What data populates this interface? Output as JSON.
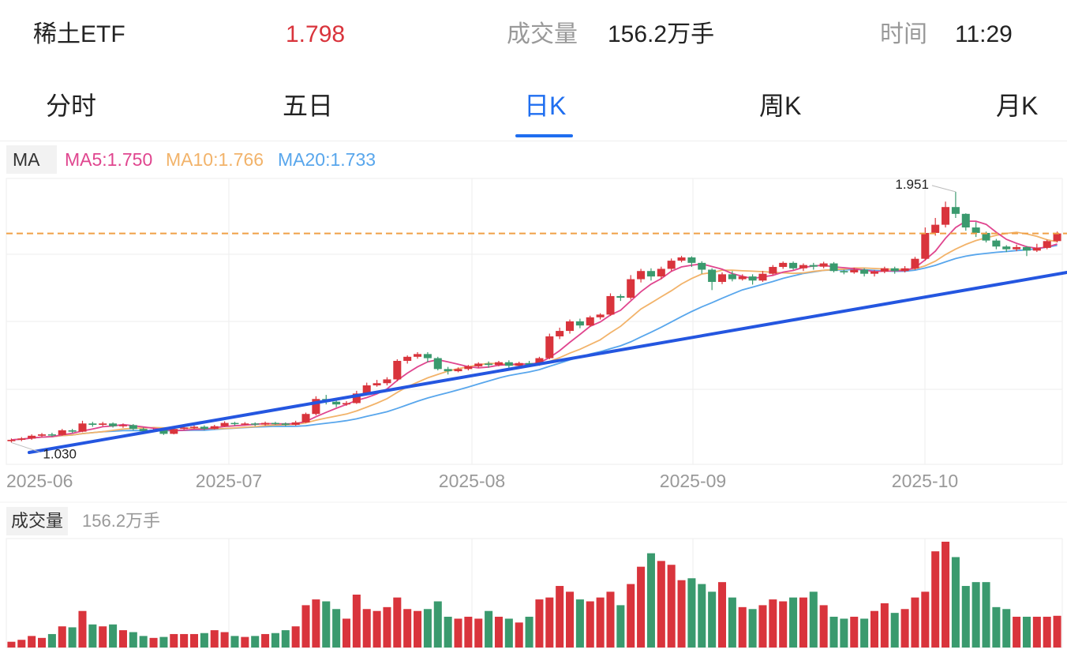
{
  "header": {
    "name": "稀土ETF",
    "price": "1.798",
    "volume_label": "成交量",
    "volume_value": "156.2万手",
    "time_label": "时间",
    "time_value": "11:29"
  },
  "tabs": [
    {
      "label": "分时",
      "active": false
    },
    {
      "label": "五日",
      "active": false
    },
    {
      "label": "日K",
      "active": true
    },
    {
      "label": "周K",
      "active": false
    },
    {
      "label": "月K",
      "active": false
    }
  ],
  "ma_indicator": {
    "label": "MA",
    "ma5": "MA5:1.750",
    "ma10": "MA10:1.766",
    "ma20": "MA20:1.733"
  },
  "volume_indicator": {
    "label": "成交量",
    "value": "156.2万手"
  },
  "colors": {
    "up": "#d9343c",
    "down": "#3a9a6e",
    "ma5": "#e0468f",
    "ma10": "#f2b36a",
    "ma20": "#58a6ec",
    "trendline": "#2456e0",
    "dashed": "#f0a046",
    "accent": "#1f6ef0"
  },
  "chart_data": {
    "type": "candlestick",
    "x_ticks": [
      "2025-06",
      "2025-07",
      "2025-08",
      "2025-09",
      "2025-10"
    ],
    "annotations": {
      "high": "1.951",
      "low": "1.030"
    },
    "reference_price": 1.798,
    "candles": [
      [
        1.035,
        1.04,
        1.03,
        1.045
      ],
      [
        1.04,
        1.045,
        1.035,
        1.05
      ],
      [
        1.045,
        1.055,
        1.04,
        1.06
      ],
      [
        1.055,
        1.06,
        1.05,
        1.065
      ],
      [
        1.06,
        1.058,
        1.052,
        1.066
      ],
      [
        1.058,
        1.075,
        1.055,
        1.08
      ],
      [
        1.075,
        1.07,
        1.065,
        1.08
      ],
      [
        1.07,
        1.1,
        1.068,
        1.11
      ],
      [
        1.1,
        1.095,
        1.088,
        1.106
      ],
      [
        1.095,
        1.1,
        1.09,
        1.106
      ],
      [
        1.1,
        1.09,
        1.085,
        1.104
      ],
      [
        1.09,
        1.094,
        1.084,
        1.1
      ],
      [
        1.094,
        1.08,
        1.075,
        1.098
      ],
      [
        1.08,
        1.072,
        1.066,
        1.085
      ],
      [
        1.072,
        1.077,
        1.068,
        1.082
      ],
      [
        1.077,
        1.062,
        1.058,
        1.081
      ],
      [
        1.062,
        1.08,
        1.06,
        1.086
      ],
      [
        1.08,
        1.085,
        1.076,
        1.09
      ],
      [
        1.085,
        1.088,
        1.08,
        1.093
      ],
      [
        1.088,
        1.08,
        1.075,
        1.093
      ],
      [
        1.08,
        1.09,
        1.078,
        1.095
      ],
      [
        1.09,
        1.102,
        1.088,
        1.108
      ],
      [
        1.102,
        1.098,
        1.092,
        1.106
      ],
      [
        1.098,
        1.1,
        1.094,
        1.105
      ],
      [
        1.1,
        1.096,
        1.09,
        1.104
      ],
      [
        1.096,
        1.102,
        1.092,
        1.107
      ],
      [
        1.102,
        1.1,
        1.095,
        1.106
      ],
      [
        1.1,
        1.095,
        1.09,
        1.104
      ],
      [
        1.095,
        1.104,
        1.092,
        1.11
      ],
      [
        1.104,
        1.135,
        1.102,
        1.14
      ],
      [
        1.135,
        1.19,
        1.13,
        1.2
      ],
      [
        1.19,
        1.18,
        1.17,
        1.205
      ],
      [
        1.18,
        1.17,
        1.16,
        1.185
      ],
      [
        1.17,
        1.175,
        1.165,
        1.182
      ],
      [
        1.175,
        1.21,
        1.172,
        1.22
      ],
      [
        1.21,
        1.24,
        1.205,
        1.25
      ],
      [
        1.24,
        1.248,
        1.235,
        1.26
      ],
      [
        1.248,
        1.262,
        1.24,
        1.27
      ],
      [
        1.262,
        1.33,
        1.255,
        1.336
      ],
      [
        1.33,
        1.345,
        1.32,
        1.35
      ],
      [
        1.345,
        1.355,
        1.338,
        1.362
      ],
      [
        1.355,
        1.34,
        1.325,
        1.362
      ],
      [
        1.34,
        1.3,
        1.295,
        1.345
      ],
      [
        1.3,
        1.292,
        1.28,
        1.308
      ],
      [
        1.292,
        1.3,
        1.288,
        1.306
      ],
      [
        1.3,
        1.31,
        1.295,
        1.315
      ],
      [
        1.31,
        1.32,
        1.305,
        1.325
      ],
      [
        1.32,
        1.315,
        1.305,
        1.328
      ],
      [
        1.315,
        1.325,
        1.31,
        1.33
      ],
      [
        1.325,
        1.312,
        1.305,
        1.332
      ],
      [
        1.312,
        1.322,
        1.306,
        1.327
      ],
      [
        1.322,
        1.316,
        1.31,
        1.33
      ],
      [
        1.316,
        1.34,
        1.312,
        1.345
      ],
      [
        1.34,
        1.42,
        1.336,
        1.43
      ],
      [
        1.42,
        1.44,
        1.41,
        1.452
      ],
      [
        1.44,
        1.475,
        1.43,
        1.482
      ],
      [
        1.475,
        1.46,
        1.45,
        1.485
      ],
      [
        1.46,
        1.49,
        1.455,
        1.496
      ],
      [
        1.49,
        1.5,
        1.482,
        1.505
      ],
      [
        1.5,
        1.568,
        1.495,
        1.578
      ],
      [
        1.568,
        1.562,
        1.55,
        1.575
      ],
      [
        1.562,
        1.63,
        1.555,
        1.645
      ],
      [
        1.63,
        1.66,
        1.618,
        1.668
      ],
      [
        1.66,
        1.64,
        1.625,
        1.67
      ],
      [
        1.64,
        1.668,
        1.63,
        1.676
      ],
      [
        1.668,
        1.698,
        1.66,
        1.706
      ],
      [
        1.698,
        1.71,
        1.692,
        1.716
      ],
      [
        1.71,
        1.69,
        1.675,
        1.714
      ],
      [
        1.69,
        1.665,
        1.65,
        1.696
      ],
      [
        1.665,
        1.62,
        1.59,
        1.67
      ],
      [
        1.62,
        1.648,
        1.612,
        1.655
      ],
      [
        1.648,
        1.63,
        1.622,
        1.66
      ],
      [
        1.63,
        1.64,
        1.625,
        1.648
      ],
      [
        1.64,
        1.625,
        1.61,
        1.648
      ],
      [
        1.625,
        1.65,
        1.62,
        1.66
      ],
      [
        1.65,
        1.675,
        1.645,
        1.682
      ],
      [
        1.675,
        1.69,
        1.668,
        1.695
      ],
      [
        1.69,
        1.67,
        1.665,
        1.695
      ],
      [
        1.67,
        1.682,
        1.66,
        1.688
      ],
      [
        1.682,
        1.676,
        1.665,
        1.69
      ],
      [
        1.676,
        1.688,
        1.67,
        1.694
      ],
      [
        1.688,
        1.66,
        1.655,
        1.693
      ],
      [
        1.66,
        1.655,
        1.648,
        1.665
      ],
      [
        1.655,
        1.665,
        1.65,
        1.672
      ],
      [
        1.665,
        1.65,
        1.64,
        1.67
      ],
      [
        1.65,
        1.658,
        1.64,
        1.664
      ],
      [
        1.658,
        1.67,
        1.652,
        1.676
      ],
      [
        1.67,
        1.66,
        1.65,
        1.676
      ],
      [
        1.66,
        1.67,
        1.655,
        1.678
      ],
      [
        1.67,
        1.705,
        1.665,
        1.712
      ],
      [
        1.705,
        1.8,
        1.698,
        1.82
      ],
      [
        1.8,
        1.83,
        1.79,
        1.855
      ],
      [
        1.83,
        1.895,
        1.82,
        1.915
      ],
      [
        1.895,
        1.87,
        1.855,
        1.951
      ],
      [
        1.87,
        1.82,
        1.808,
        1.872
      ],
      [
        1.82,
        1.8,
        1.785,
        1.84
      ],
      [
        1.8,
        1.772,
        1.765,
        1.805
      ],
      [
        1.772,
        1.75,
        1.74,
        1.778
      ],
      [
        1.75,
        1.74,
        1.73,
        1.755
      ],
      [
        1.74,
        1.748,
        1.733,
        1.757
      ],
      [
        1.748,
        1.735,
        1.715,
        1.752
      ],
      [
        1.735,
        1.745,
        1.73,
        1.76
      ],
      [
        1.745,
        1.77,
        1.74,
        1.775
      ],
      [
        1.77,
        1.798,
        1.765,
        1.805
      ]
    ],
    "volume": [
      6,
      8,
      12,
      10,
      14,
      22,
      21,
      38,
      24,
      22,
      24,
      18,
      16,
      12,
      10,
      11,
      14,
      14,
      14,
      15,
      18,
      16,
      12,
      11,
      12,
      14,
      15,
      18,
      22,
      44,
      50,
      48,
      40,
      30,
      55,
      40,
      38,
      42,
      52,
      40,
      38,
      40,
      48,
      32,
      30,
      32,
      30,
      38,
      32,
      30,
      26,
      32,
      50,
      52,
      64,
      58,
      50,
      48,
      52,
      58,
      44,
      66,
      84,
      98,
      90,
      86,
      70,
      72,
      66,
      58,
      68,
      52,
      42,
      40,
      44,
      50,
      48,
      52,
      52,
      58,
      44,
      32,
      30,
      32,
      30,
      38,
      46,
      36,
      40,
      52,
      58,
      100,
      110,
      94,
      64,
      68,
      68,
      42,
      40,
      32,
      32,
      32,
      32,
      33
    ]
  }
}
